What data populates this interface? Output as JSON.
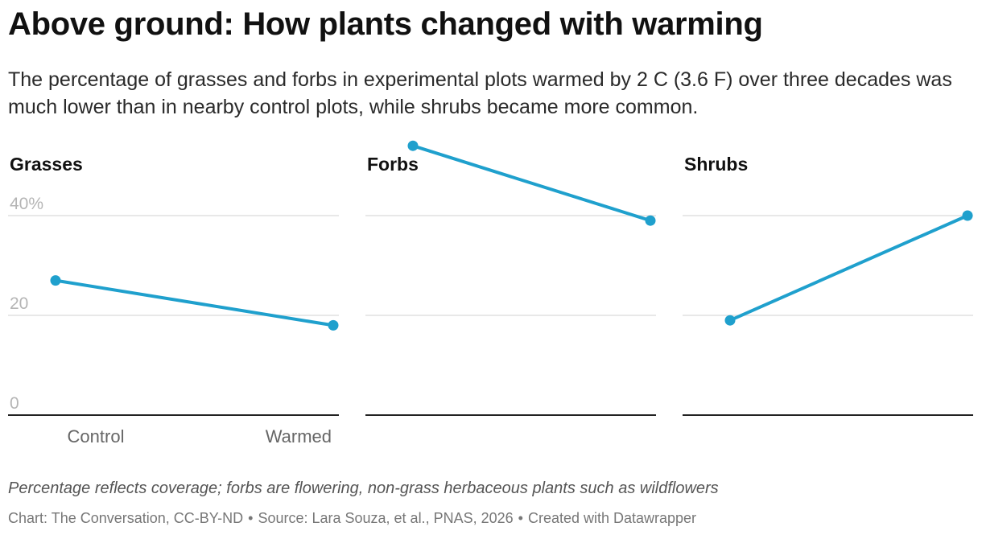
{
  "title": "Above ground: How plants changed with warming",
  "subtitle": "The percentage of grasses and forbs in experimental plots warmed by 2 C (3.6 F) over three decades was much lower than in nearby control plots, while shrubs became more common.",
  "notes": "Percentage reflects coverage; forbs are flowering, non-grass herbaceous plants such as wildflowers",
  "byline": {
    "chart": "Chart: The Conversation, CC-BY-ND",
    "source": "Source: Lara Souza, et al., PNAS, 2026",
    "created": "Created with Datawrapper",
    "separator": "•"
  },
  "colors": {
    "line": "#1fa0cd",
    "grid": "#e0e0e0",
    "axis": "#222222",
    "tick": "#b5b5b5",
    "xlabel": "#666666"
  },
  "chart_data": {
    "type": "line",
    "categories": [
      "Control",
      "Warmed"
    ],
    "ylim": [
      0,
      50
    ],
    "y_ticks": [
      0,
      20,
      40
    ],
    "y_tick_labels": [
      "0",
      "20",
      "40%"
    ],
    "grid": true,
    "panels": [
      {
        "name": "Grasses",
        "values": [
          27,
          18
        ]
      },
      {
        "name": "Forbs",
        "values": [
          54,
          39
        ]
      },
      {
        "name": "Shrubs",
        "values": [
          19,
          40
        ]
      }
    ]
  }
}
